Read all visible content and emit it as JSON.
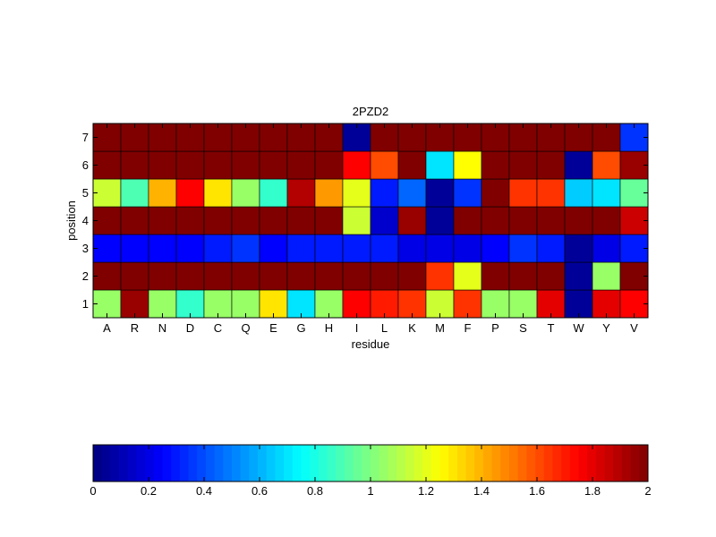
{
  "chart_data": {
    "type": "heatmap",
    "title": "2PZD2",
    "xlabel": "residue",
    "ylabel": "position",
    "x_categories": [
      "A",
      "R",
      "N",
      "D",
      "C",
      "Q",
      "E",
      "G",
      "H",
      "I",
      "L",
      "K",
      "M",
      "F",
      "P",
      "S",
      "T",
      "W",
      "Y",
      "V"
    ],
    "y_categories": [
      "1",
      "2",
      "3",
      "4",
      "5",
      "6",
      "7"
    ],
    "values": [
      [
        1.05,
        1.95,
        1.05,
        0.85,
        1.05,
        1.05,
        1.3,
        0.7,
        1.05,
        1.75,
        1.7,
        1.65,
        1.15,
        1.65,
        1.05,
        1.05,
        1.8,
        0.05,
        1.8,
        1.75
      ],
      [
        2.0,
        2.0,
        2.0,
        2.0,
        2.0,
        2.0,
        2.0,
        2.0,
        2.0,
        2.0,
        2.0,
        2.0,
        1.65,
        1.2,
        2.0,
        2.0,
        2.0,
        0.05,
        1.05,
        2.0
      ],
      [
        0.25,
        0.25,
        0.25,
        0.25,
        0.3,
        0.35,
        0.25,
        0.3,
        0.3,
        0.3,
        0.3,
        0.2,
        0.2,
        0.2,
        0.25,
        0.35,
        0.3,
        0.05,
        0.2,
        0.3
      ],
      [
        2.0,
        2.0,
        2.0,
        2.0,
        2.0,
        2.0,
        2.0,
        2.0,
        2.0,
        1.15,
        0.15,
        1.95,
        0.05,
        2.0,
        2.0,
        2.0,
        2.0,
        2.0,
        2.0,
        1.85
      ],
      [
        1.15,
        0.9,
        1.4,
        1.75,
        1.3,
        1.05,
        0.85,
        1.9,
        1.45,
        1.2,
        0.3,
        0.45,
        0.05,
        0.35,
        2.0,
        1.65,
        1.65,
        0.65,
        0.7,
        0.95
      ],
      [
        2.0,
        2.0,
        2.0,
        2.0,
        2.0,
        2.0,
        2.0,
        2.0,
        2.0,
        1.75,
        1.6,
        2.0,
        0.7,
        1.25,
        2.0,
        2.0,
        2.0,
        0.05,
        1.6,
        1.95
      ],
      [
        2.0,
        2.0,
        2.0,
        2.0,
        2.0,
        2.0,
        2.0,
        2.0,
        2.0,
        0.05,
        2.0,
        2.0,
        2.0,
        2.0,
        2.0,
        2.0,
        2.0,
        2.0,
        2.0,
        0.35
      ]
    ],
    "colormap": "jet",
    "clim": [
      0,
      2
    ],
    "colorbar_ticks": [
      "0",
      "0.2",
      "0.4",
      "0.6",
      "0.8",
      "1",
      "1.2",
      "1.4",
      "1.6",
      "1.8",
      "2"
    ],
    "colorbar_placement": "bottom",
    "grid": false
  }
}
